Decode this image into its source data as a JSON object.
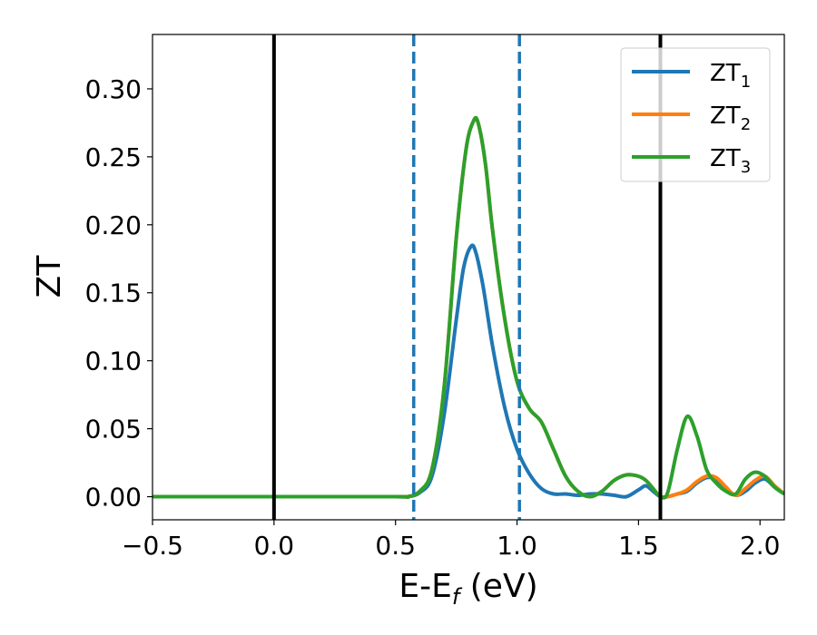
{
  "chart_data": {
    "type": "line",
    "xlabel_main": "E-E",
    "xlabel_sub": "f",
    "xlabel_unit": " (eV)",
    "ylabel": "ZT",
    "xlim": [
      -0.5,
      2.1
    ],
    "ylim": [
      -0.017,
      0.34
    ],
    "x_ticks": [
      -0.5,
      0.0,
      0.5,
      1.0,
      1.5,
      2.0
    ],
    "x_tick_labels": [
      "−0.5",
      "0.0",
      "0.5",
      "1.0",
      "1.5",
      "2.0"
    ],
    "y_ticks": [
      0.0,
      0.05,
      0.1,
      0.15,
      0.2,
      0.25,
      0.3
    ],
    "y_tick_labels": [
      "0.00",
      "0.05",
      "0.10",
      "0.15",
      "0.20",
      "0.25",
      "0.30"
    ],
    "grid": false,
    "legend_placement": "top-right",
    "vlines": [
      {
        "x": 0.0,
        "style": "solid",
        "color": "#000000"
      },
      {
        "x": 1.59,
        "style": "solid",
        "color": "#000000"
      },
      {
        "x": 0.575,
        "style": "dashed",
        "color": "#1f77b4"
      },
      {
        "x": 1.01,
        "style": "dashed",
        "color": "#1f77b4"
      }
    ],
    "series": [
      {
        "name_main": "ZT",
        "name_sub": "1",
        "color": "#1f77b4",
        "x": [
          -0.5,
          0.0,
          0.5,
          0.55,
          0.6,
          0.65,
          0.7,
          0.75,
          0.78,
          0.81,
          0.83,
          0.86,
          0.9,
          0.95,
          1.0,
          1.05,
          1.1,
          1.15,
          1.2,
          1.25,
          1.3,
          1.35,
          1.4,
          1.45,
          1.5,
          1.53,
          1.56,
          1.59,
          1.62,
          1.66,
          1.7,
          1.74,
          1.78,
          1.82,
          1.86,
          1.9,
          1.94,
          1.98,
          2.02,
          2.06,
          2.1
        ],
        "y": [
          0.0,
          0.0,
          0.0,
          0.0,
          0.003,
          0.015,
          0.06,
          0.13,
          0.168,
          0.184,
          0.18,
          0.155,
          0.11,
          0.065,
          0.035,
          0.017,
          0.006,
          0.002,
          0.002,
          0.001,
          0.002,
          0.002,
          0.001,
          0.0,
          0.005,
          0.008,
          0.004,
          0.0,
          0.0,
          0.002,
          0.004,
          0.01,
          0.014,
          0.013,
          0.006,
          0.001,
          0.004,
          0.01,
          0.013,
          0.007,
          0.002
        ]
      },
      {
        "name_main": "ZT",
        "name_sub": "2",
        "color": "#ff7f0e",
        "x": [
          -0.5,
          0.0,
          0.5,
          0.55,
          0.6,
          0.65,
          0.7,
          0.75,
          0.79,
          0.82,
          0.84,
          0.87,
          0.9,
          0.95,
          1.0,
          1.05,
          1.1,
          1.15,
          1.2,
          1.25,
          1.3,
          1.35,
          1.4,
          1.45,
          1.5,
          1.53,
          1.56,
          1.59,
          1.62,
          1.66,
          1.7,
          1.74,
          1.78,
          1.82,
          1.86,
          1.9,
          1.94,
          1.98,
          2.02,
          2.06,
          2.1
        ],
        "y": [
          0.0,
          0.0,
          0.0,
          0.0,
          0.004,
          0.02,
          0.08,
          0.19,
          0.255,
          0.276,
          0.275,
          0.245,
          0.195,
          0.13,
          0.085,
          0.065,
          0.055,
          0.035,
          0.015,
          0.004,
          0.0,
          0.004,
          0.012,
          0.016,
          0.015,
          0.012,
          0.006,
          0.0,
          0.0,
          0.002,
          0.005,
          0.011,
          0.015,
          0.014,
          0.007,
          0.001,
          0.006,
          0.012,
          0.015,
          0.008,
          0.002
        ]
      },
      {
        "name_main": "ZT",
        "name_sub": "3",
        "color": "#2ca02c",
        "x": [
          -0.5,
          0.0,
          0.5,
          0.55,
          0.6,
          0.65,
          0.7,
          0.75,
          0.79,
          0.82,
          0.84,
          0.87,
          0.9,
          0.95,
          1.0,
          1.05,
          1.1,
          1.15,
          1.2,
          1.25,
          1.3,
          1.35,
          1.4,
          1.45,
          1.5,
          1.53,
          1.56,
          1.59,
          1.62,
          1.66,
          1.7,
          1.74,
          1.78,
          1.82,
          1.86,
          1.9,
          1.94,
          1.98,
          2.02,
          2.06,
          2.1
        ],
        "y": [
          0.0,
          0.0,
          0.0,
          0.0,
          0.004,
          0.02,
          0.08,
          0.19,
          0.255,
          0.276,
          0.275,
          0.245,
          0.195,
          0.13,
          0.085,
          0.065,
          0.055,
          0.035,
          0.015,
          0.004,
          0.0,
          0.004,
          0.012,
          0.016,
          0.015,
          0.012,
          0.006,
          0.0,
          0.003,
          0.035,
          0.059,
          0.045,
          0.02,
          0.01,
          0.004,
          0.002,
          0.013,
          0.018,
          0.015,
          0.007,
          0.002
        ]
      }
    ]
  }
}
